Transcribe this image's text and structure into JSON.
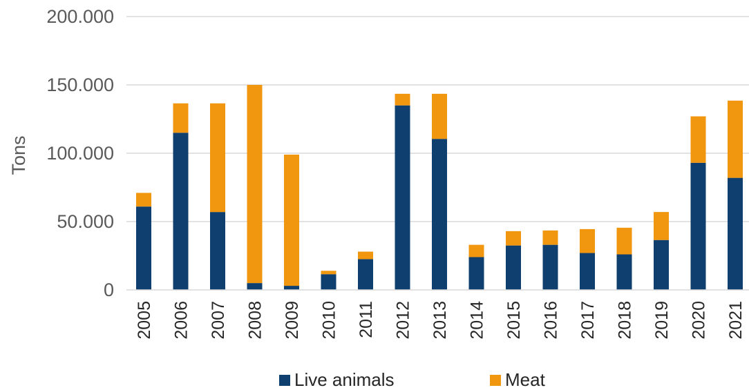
{
  "chart_data": {
    "type": "bar",
    "stacked": true,
    "title": "",
    "xlabel": "",
    "ylabel": "Tons",
    "ylim": [
      0,
      200000
    ],
    "yticks": [
      0,
      50000,
      100000,
      150000,
      200000
    ],
    "ytick_labels": [
      "0",
      "50.000",
      "100.000",
      "150.000",
      "200.000"
    ],
    "grid": true,
    "legend_position": "bottom",
    "categories": [
      "2005",
      "2006",
      "2007",
      "2008",
      "2009",
      "2010",
      "2011",
      "2012",
      "2013",
      "2014",
      "2015",
      "2016",
      "2017",
      "2018",
      "2019",
      "2020",
      "2021"
    ],
    "series": [
      {
        "name": "Live animals",
        "color": "#0e3f6e",
        "values": [
          61000,
          115000,
          57000,
          5000,
          3000,
          11500,
          22500,
          135000,
          110500,
          24000,
          32500,
          33000,
          27000,
          26000,
          36500,
          93000,
          82000
        ]
      },
      {
        "name": "Meat",
        "color": "#f0960f",
        "values": [
          10000,
          21500,
          79500,
          145000,
          96000,
          2500,
          5500,
          8500,
          33000,
          9000,
          10500,
          10500,
          17500,
          19500,
          20500,
          34000,
          56500
        ]
      }
    ]
  }
}
